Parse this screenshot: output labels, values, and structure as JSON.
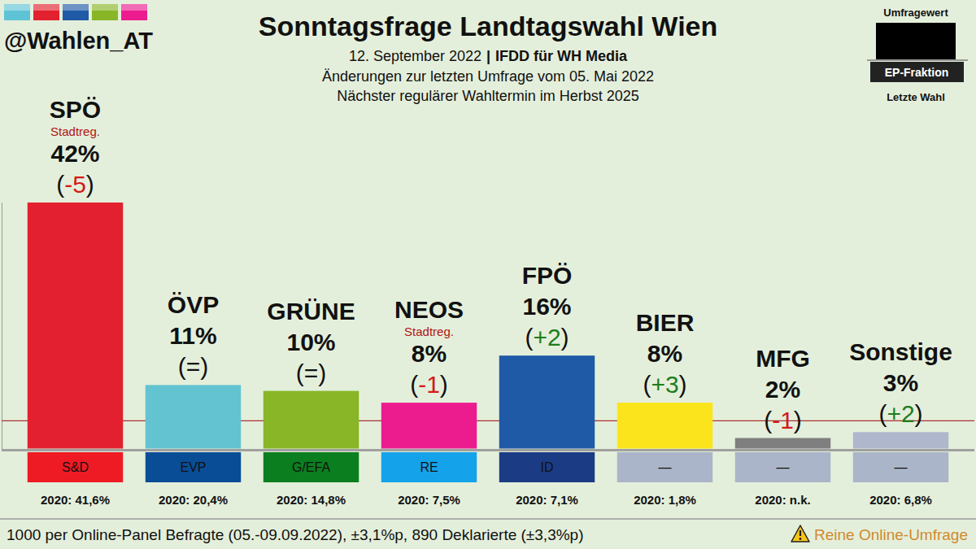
{
  "chart_data": {
    "type": "bar",
    "title": "Sonntagsfrage Landtagswahl Wien",
    "subtitle": [
      "12. September 2022",
      "|",
      "IFDD für WH Media",
      "Änderungen zur letzten Umfrage vom 05. Mai 2022",
      "Nächster regulärer Wahltermin im Herbst 2025"
    ],
    "source": "@Wahlen_AT",
    "legend_labels": [
      "Umfragewert",
      "EP-Fraktion",
      "Letzte Wahl"
    ],
    "categories": [
      "SPÖ",
      "ÖVP",
      "GRÜNE",
      "NEOS",
      "FPÖ",
      "BIER",
      "MFG",
      "Sonstige"
    ],
    "values": [
      42,
      11,
      10,
      8,
      16,
      8,
      2,
      3
    ],
    "value_labels": [
      "42%",
      "11%",
      "10%",
      "8%",
      "16%",
      "8%",
      "2%",
      "3%"
    ],
    "colors": [
      "#e3202f",
      "#63c3d1",
      "#88b626",
      "#ec1c8f",
      "#1f5aa6",
      "#fbe41c",
      "#7f7f7f",
      "#aeb7cc"
    ],
    "status_labels": [
      "Stadtreg.",
      null,
      null,
      "Stadtreg.",
      null,
      null,
      null,
      null
    ],
    "changes": [
      -5,
      0,
      0,
      -1,
      2,
      3,
      -1,
      2
    ],
    "change_labels": [
      "-5",
      "=",
      "=",
      "-1",
      "+2",
      "+3",
      "-1",
      "+2"
    ],
    "change_brackets": [
      "(",
      ")"
    ],
    "ep_factions": [
      "S&D",
      "EVP",
      "G/EFA",
      "RE",
      "ID",
      "—",
      "—",
      "—"
    ],
    "ep_faction_colors": [
      "#ee1b24",
      "#0a4d97",
      "#0b7f1f",
      "#14a3ea",
      "#1b3c84",
      "#aab5c9",
      "#aab5c9",
      "#aab5c9"
    ],
    "last_election_labels": [
      "2020: 41,6%",
      "2020: 20,4%",
      "2020: 14,8%",
      "2020: 7,5%",
      "2020: 7,1%",
      "2020: 1,8%",
      "2020: n.k.",
      "2020: 6,8%"
    ],
    "footnote": "1000 per Online-Panel Befragte (05.-09.09.2022), ±3,1%p, 890 Deklarierte (±3,3%p)",
    "warning": "Reine Online-Umfrage",
    "ylim": [
      0,
      42
    ],
    "yticks": [
      0,
      5
    ],
    "tick_labels": false,
    "data_labels": true
  }
}
